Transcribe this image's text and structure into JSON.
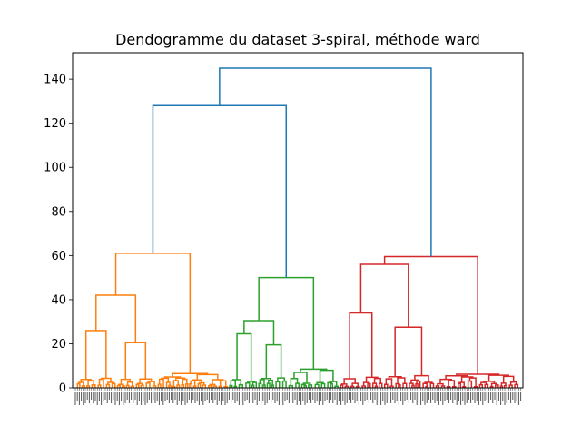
{
  "chart_data": {
    "type": "dendrogram",
    "title": "Dendogramme du dataset 3-spiral, méthode ward",
    "xlabel": "",
    "ylabel": "",
    "ylim": [
      0,
      152
    ],
    "yticks": [
      0,
      20,
      40,
      60,
      80,
      100,
      120,
      140
    ],
    "grid": false,
    "colors": {
      "cluster_1": "#ff7f0e",
      "cluster_2": "#2ca02c",
      "cluster_3": "#d62728",
      "above_threshold": "#1f77b4"
    },
    "top_merges": [
      {
        "id": "root",
        "height": 145,
        "children": [
          "A",
          "B"
        ],
        "color": "above_threshold"
      },
      {
        "id": "A",
        "height": 128,
        "children": [
          "orange",
          "green"
        ],
        "color": "above_threshold"
      },
      {
        "id": "orange",
        "height": 61,
        "cluster": "cluster_1"
      },
      {
        "id": "green",
        "height": 50,
        "cluster": "cluster_2"
      },
      {
        "id": "B",
        "height": 59.5,
        "cluster": "cluster_3"
      }
    ],
    "clusters": [
      {
        "name": "cluster_1",
        "merge_heights": [
          61,
          42,
          26,
          20.5,
          27,
          9,
          9.5,
          13.5,
          13,
          12.5,
          5,
          4.5,
          6.5,
          5,
          8,
          5,
          6,
          4.5,
          3
        ]
      },
      {
        "name": "cluster_2",
        "merge_heights": [
          50,
          30.5,
          24.5,
          19.5,
          11.5,
          12,
          7.5,
          6,
          7,
          11,
          6.5,
          8,
          7,
          4
        ]
      },
      {
        "name": "cluster_3",
        "merge_heights": [
          59.5,
          56,
          34,
          27.5,
          23,
          17,
          11,
          13,
          12,
          16.5,
          10,
          9,
          6.5,
          5,
          8,
          5,
          8.5,
          4,
          3.5,
          6
        ]
      }
    ]
  }
}
